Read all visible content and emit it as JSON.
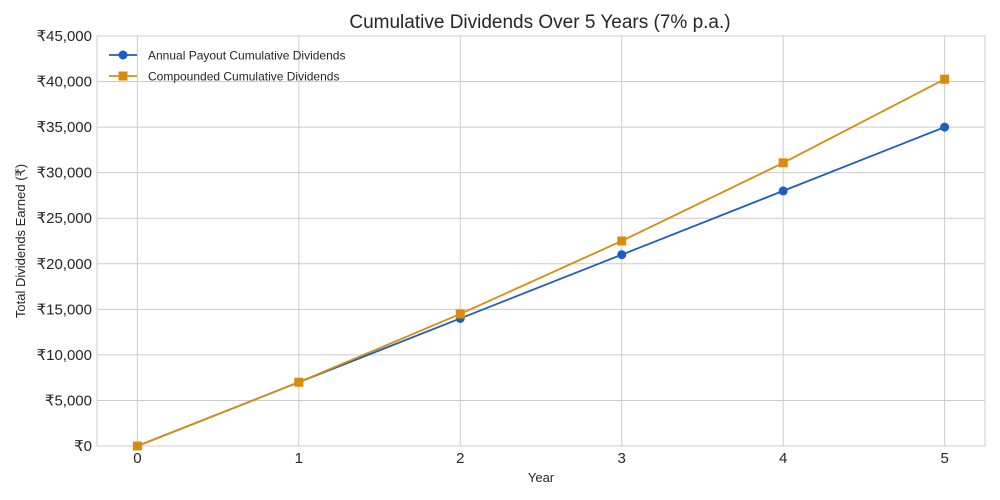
{
  "chart_data": {
    "type": "line",
    "title": "Cumulative Dividends Over 5 Years (7% p.a.)",
    "xlabel": "Year",
    "ylabel": "Total Dividends Earned (₹)",
    "x": [
      0,
      1,
      2,
      3,
      4,
      5
    ],
    "x_tick_labels": [
      "0",
      "1",
      "2",
      "3",
      "4",
      "5"
    ],
    "xlim": [
      -0.25,
      5.25
    ],
    "ylim": [
      0,
      45000
    ],
    "y_ticks": [
      0,
      5000,
      10000,
      15000,
      20000,
      25000,
      30000,
      35000,
      40000,
      45000
    ],
    "y_tick_labels": [
      "₹0",
      "₹5,000",
      "₹10,000",
      "₹15,000",
      "₹20,000",
      "₹25,000",
      "₹30,000",
      "₹35,000",
      "₹40,000",
      "₹45,000"
    ],
    "grid": true,
    "legend_position": "top-left",
    "series": [
      {
        "name": "Annual Payout Cumulative Dividends",
        "values": [
          0,
          7000,
          14000,
          21000,
          28000,
          35000
        ],
        "color": "#1f5cc4",
        "marker": "circle"
      },
      {
        "name": "Compounded Cumulative Dividends",
        "values": [
          0,
          7000,
          14490,
          22504,
          31080,
          40255
        ],
        "color": "#d98c0c",
        "marker": "square"
      }
    ]
  }
}
